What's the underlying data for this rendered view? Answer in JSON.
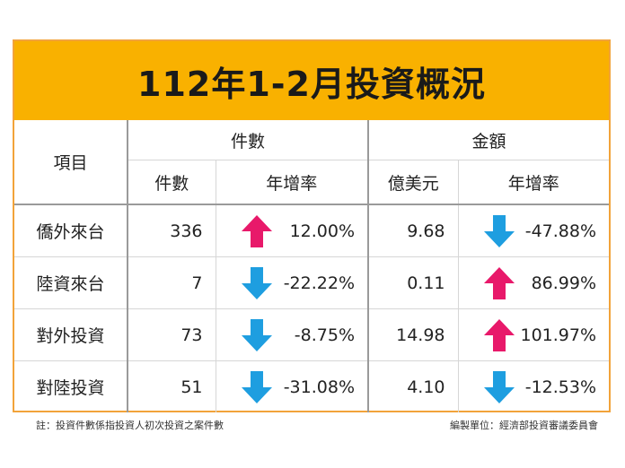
{
  "title": "112年1-2月投資概況",
  "headers": {
    "item": "項目",
    "count_group": "件數",
    "amount_group": "金額",
    "count": "件數",
    "count_growth": "年增率",
    "amount": "億美元",
    "amount_growth": "年增率"
  },
  "rows": [
    {
      "label": "僑外來台",
      "count": "336",
      "count_growth": "12.00%",
      "count_dir": "up",
      "amount": "9.68",
      "amount_growth": "-47.88%",
      "amount_dir": "down"
    },
    {
      "label": "陸資來台",
      "count": "7",
      "count_growth": "-22.22%",
      "count_dir": "down",
      "amount": "0.11",
      "amount_growth": "86.99%",
      "amount_dir": "up"
    },
    {
      "label": "對外投資",
      "count": "73",
      "count_growth": "-8.75%",
      "count_dir": "down",
      "amount": "14.98",
      "amount_growth": "101.97%",
      "amount_dir": "up"
    },
    {
      "label": "對陸投資",
      "count": "51",
      "count_growth": "-31.08%",
      "count_dir": "down",
      "amount": "4.10",
      "amount_growth": "-12.53%",
      "amount_dir": "down"
    }
  ],
  "footnote": "註：投資件數係指投資人初次投資之案件數",
  "source": "編製單位：經濟部投資審議委員會",
  "colors": {
    "title_bg": "#f9b100",
    "border": "#f2a33a",
    "up_arrow": "#e8196a",
    "down_arrow": "#1e9ee0"
  },
  "icons": {
    "up": "arrow-up-icon",
    "down": "arrow-down-icon"
  }
}
